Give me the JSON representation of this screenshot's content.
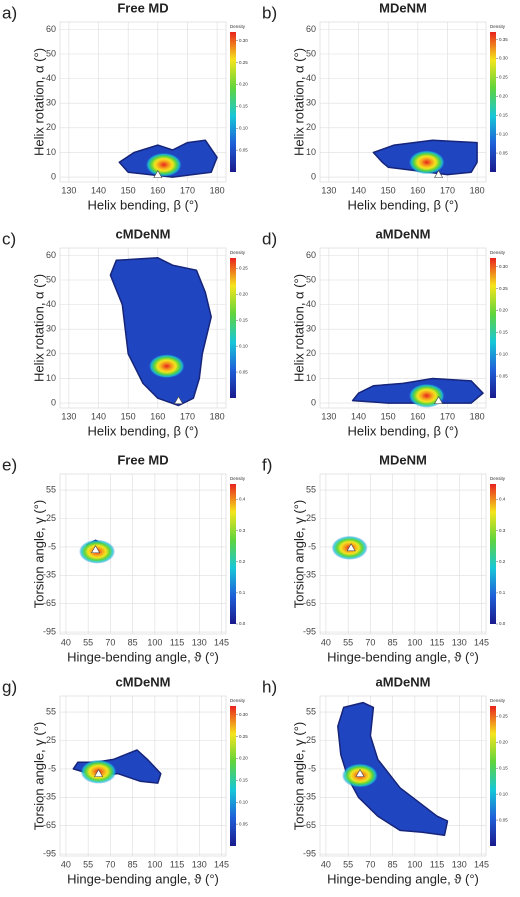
{
  "chart_data": [
    {
      "type": "density",
      "label": "a)",
      "title": "Free MD",
      "xlabel": "Helix bending, β (°)",
      "ylabel": "Helix rotation, α (°)",
      "xlim": [
        127,
        183
      ],
      "ylim": [
        -2,
        63
      ],
      "xticks": [
        130,
        140,
        150,
        160,
        170,
        180
      ],
      "yticks": [
        0,
        10,
        20,
        30,
        40,
        50,
        60
      ],
      "grid": true,
      "outline": {
        "x": [
          150,
          165,
          178,
          180,
          176,
          170,
          165,
          160,
          152,
          147
        ],
        "y": [
          2,
          0,
          2,
          8,
          15,
          14,
          11,
          13,
          10,
          6
        ]
      },
      "core": {
        "x": 162,
        "y": 5
      },
      "peak": {
        "x": 160,
        "y": 1
      },
      "colorbar": {
        "title": "Density",
        "lim": [
          0,
          0.32
        ],
        "ticks": [
          {
            "value": 0.05,
            "label": "0.05"
          },
          {
            "value": 0.1,
            "label": "0.10"
          },
          {
            "value": 0.15,
            "label": "0.15"
          },
          {
            "value": 0.2,
            "label": "0.20"
          },
          {
            "value": 0.25,
            "label": "0.25"
          },
          {
            "value": 0.3,
            "label": "0.30"
          }
        ]
      }
    },
    {
      "type": "density",
      "label": "b)",
      "title": "MDeNM",
      "xlabel": "Helix bending, β (°)",
      "ylabel": "Helix rotation, α (°)",
      "xlim": [
        127,
        183
      ],
      "ylim": [
        -2,
        63
      ],
      "xticks": [
        130,
        140,
        150,
        160,
        170,
        180
      ],
      "yticks": [
        0,
        10,
        20,
        30,
        40,
        50,
        60
      ],
      "grid": true,
      "outline": {
        "x": [
          150,
          170,
          178,
          180,
          180,
          165,
          152,
          145,
          148
        ],
        "y": [
          4,
          1,
          2,
          6,
          14,
          15,
          13,
          10,
          6
        ]
      },
      "core": {
        "x": 163,
        "y": 6
      },
      "peak": {
        "x": 167,
        "y": 1
      },
      "colorbar": {
        "title": "Density",
        "lim": [
          0,
          0.37
        ],
        "ticks": [
          {
            "value": 0.05,
            "label": "0.05"
          },
          {
            "value": 0.1,
            "label": "0.10"
          },
          {
            "value": 0.15,
            "label": "0.15"
          },
          {
            "value": 0.2,
            "label": "0.20"
          },
          {
            "value": 0.25,
            "label": "0.25"
          },
          {
            "value": 0.3,
            "label": "0.30"
          },
          {
            "value": 0.35,
            "label": "0.35"
          }
        ]
      }
    },
    {
      "type": "density",
      "label": "c)",
      "title": "cMDeNM",
      "xlabel": "Helix bending, β (°)",
      "ylabel": "Helix rotation, α (°)",
      "xlim": [
        127,
        183
      ],
      "ylim": [
        -2,
        63
      ],
      "xticks": [
        130,
        140,
        150,
        160,
        170,
        180
      ],
      "yticks": [
        0,
        10,
        20,
        30,
        40,
        50,
        60
      ],
      "grid": true,
      "outline": {
        "x": [
          146,
          160,
          165,
          173,
          176,
          178,
          175,
          174,
          172,
          167,
          160,
          155,
          150,
          148,
          144
        ],
        "y": [
          58,
          59,
          56,
          54,
          45,
          35,
          20,
          10,
          2,
          -1,
          2,
          8,
          20,
          40,
          52
        ]
      },
      "core": {
        "x": 163,
        "y": 15
      },
      "peak": {
        "x": 167,
        "y": 1
      },
      "colorbar": {
        "title": "Density",
        "lim": [
          0,
          0.27
        ],
        "ticks": [
          {
            "value": 0.05,
            "label": "0.05"
          },
          {
            "value": 0.1,
            "label": "0.10"
          },
          {
            "value": 0.15,
            "label": "0.15"
          },
          {
            "value": 0.2,
            "label": "0.20"
          },
          {
            "value": 0.25,
            "label": "0.25"
          }
        ]
      }
    },
    {
      "type": "density",
      "label": "d)",
      "title": "aMDeNM",
      "xlabel": "Helix bending, β (°)",
      "ylabel": "Helix rotation, α (°)",
      "xlim": [
        127,
        183
      ],
      "ylim": [
        -2,
        63
      ],
      "xticks": [
        130,
        140,
        150,
        160,
        170,
        180
      ],
      "yticks": [
        0,
        10,
        20,
        30,
        40,
        50,
        60
      ],
      "grid": true,
      "outline": {
        "x": [
          138,
          150,
          178,
          182,
          178,
          165,
          155,
          145,
          140
        ],
        "y": [
          1,
          0,
          0,
          4,
          9,
          10,
          8,
          7,
          4
        ]
      },
      "core": {
        "x": 163,
        "y": 3
      },
      "peak": {
        "x": 167,
        "y": 1
      },
      "colorbar": {
        "title": "Density",
        "lim": [
          0,
          0.32
        ],
        "ticks": [
          {
            "value": 0.05,
            "label": "0.05"
          },
          {
            "value": 0.1,
            "label": "0.10"
          },
          {
            "value": 0.15,
            "label": "0.15"
          },
          {
            "value": 0.2,
            "label": "0.20"
          },
          {
            "value": 0.25,
            "label": "0.25"
          },
          {
            "value": 0.3,
            "label": "0.30"
          }
        ]
      }
    },
    {
      "type": "density",
      "label": "e)",
      "title": "Free MD",
      "xlabel": "Hinge-bending angle, ϑ (°)",
      "ylabel": "Torsion angle, γ (°)",
      "xlim": [
        36,
        148
      ],
      "ylim": [
        -97,
        72
      ],
      "xticks": [
        40,
        55,
        70,
        85,
        100,
        115,
        130,
        145
      ],
      "yticks": [
        -95,
        -65,
        -35,
        -5,
        25,
        55
      ],
      "grid": true,
      "outline": {
        "x": [
          55,
          62,
          66,
          66,
          60,
          54
        ],
        "y": [
          -12,
          -18,
          -15,
          -3,
          2,
          -3
        ]
      },
      "core": {
        "x": 61,
        "y": -10
      },
      "peak": {
        "x": 60,
        "y": -8
      },
      "colorbar": {
        "title": "Density",
        "lim": [
          0,
          0.45
        ],
        "ticks": [
          {
            "value": 0,
            "label": "0.0"
          },
          {
            "value": 0.1,
            "label": "0.1"
          },
          {
            "value": 0.2,
            "label": "0.2"
          },
          {
            "value": 0.3,
            "label": "0.3"
          },
          {
            "value": 0.4,
            "label": "0.4"
          }
        ]
      }
    },
    {
      "type": "density",
      "label": "f)",
      "title": "MDeNM",
      "xlabel": "Hinge-bending angle, ϑ (°)",
      "ylabel": "Torsion angle, γ (°)",
      "xlim": [
        36,
        148
      ],
      "ylim": [
        -97,
        72
      ],
      "xticks": [
        40,
        55,
        70,
        85,
        100,
        115,
        130,
        145
      ],
      "yticks": [
        -95,
        -65,
        -35,
        -5,
        25,
        55
      ],
      "grid": true,
      "outline": {
        "x": [
          53,
          58,
          63,
          62,
          57,
          52
        ],
        "y": [
          -10,
          -14,
          -10,
          -2,
          0,
          -5
        ]
      },
      "core": {
        "x": 56,
        "y": -6
      },
      "peak": {
        "x": 57,
        "y": -6
      },
      "colorbar": {
        "title": "Density",
        "lim": [
          0,
          0.45
        ],
        "ticks": [
          {
            "value": 0,
            "label": "0.0"
          },
          {
            "value": 0.1,
            "label": "0.1"
          },
          {
            "value": 0.2,
            "label": "0.2"
          },
          {
            "value": 0.3,
            "label": "0.3"
          },
          {
            "value": 0.4,
            "label": "0.4"
          }
        ]
      }
    },
    {
      "type": "density",
      "label": "g)",
      "title": "cMDeNM",
      "xlabel": "Hinge-bending angle, ϑ (°)",
      "ylabel": "Torsion angle, γ (°)",
      "xlim": [
        36,
        148
      ],
      "ylim": [
        -97,
        72
      ],
      "xticks": [
        40,
        55,
        70,
        85,
        100,
        115,
        130,
        145
      ],
      "yticks": [
        -95,
        -65,
        -35,
        -5,
        25,
        55
      ],
      "grid": true,
      "outline": {
        "x": [
          45,
          60,
          75,
          90,
          102,
          104,
          95,
          88,
          80,
          72,
          60,
          48
        ],
        "y": [
          -5,
          -12,
          -10,
          -18,
          -20,
          -10,
          5,
          15,
          10,
          5,
          2,
          2
        ]
      },
      "core": {
        "x": 62,
        "y": -8
      },
      "peak": {
        "x": 62,
        "y": -10
      },
      "colorbar": {
        "title": "Density",
        "lim": [
          0,
          0.32
        ],
        "ticks": [
          {
            "value": 0.05,
            "label": "0.05"
          },
          {
            "value": 0.1,
            "label": "0.10"
          },
          {
            "value": 0.15,
            "label": "0.15"
          },
          {
            "value": 0.2,
            "label": "0.20"
          },
          {
            "value": 0.25,
            "label": "0.25"
          },
          {
            "value": 0.3,
            "label": "0.30"
          }
        ]
      }
    },
    {
      "type": "density",
      "label": "h)",
      "title": "aMDeNM",
      "xlabel": "Hinge-bending angle, ϑ (°)",
      "ylabel": "Torsion angle, γ (°)",
      "xlim": [
        36,
        148
      ],
      "ylim": [
        -97,
        72
      ],
      "xticks": [
        40,
        55,
        70,
        85,
        100,
        115,
        130,
        145
      ],
      "yticks": [
        -95,
        -65,
        -35,
        -5,
        25,
        55
      ],
      "grid": true,
      "outline": {
        "x": [
          52,
          65,
          72,
          70,
          75,
          90,
          115,
          122,
          120,
          105,
          90,
          75,
          62,
          55,
          50,
          48
        ],
        "y": [
          60,
          65,
          60,
          30,
          5,
          -25,
          -55,
          -60,
          -75,
          -72,
          -70,
          -55,
          -35,
          -15,
          10,
          40
        ]
      },
      "core": {
        "x": 63,
        "y": -12
      },
      "peak": {
        "x": 63,
        "y": -10
      },
      "colorbar": {
        "title": "Density",
        "lim": [
          0,
          0.27
        ],
        "ticks": [
          {
            "value": 0.05,
            "label": "0.05"
          },
          {
            "value": 0.1,
            "label": "0.10"
          },
          {
            "value": 0.15,
            "label": "0.15"
          },
          {
            "value": 0.2,
            "label": "0.20"
          },
          {
            "value": 0.25,
            "label": "0.25"
          }
        ]
      }
    }
  ]
}
